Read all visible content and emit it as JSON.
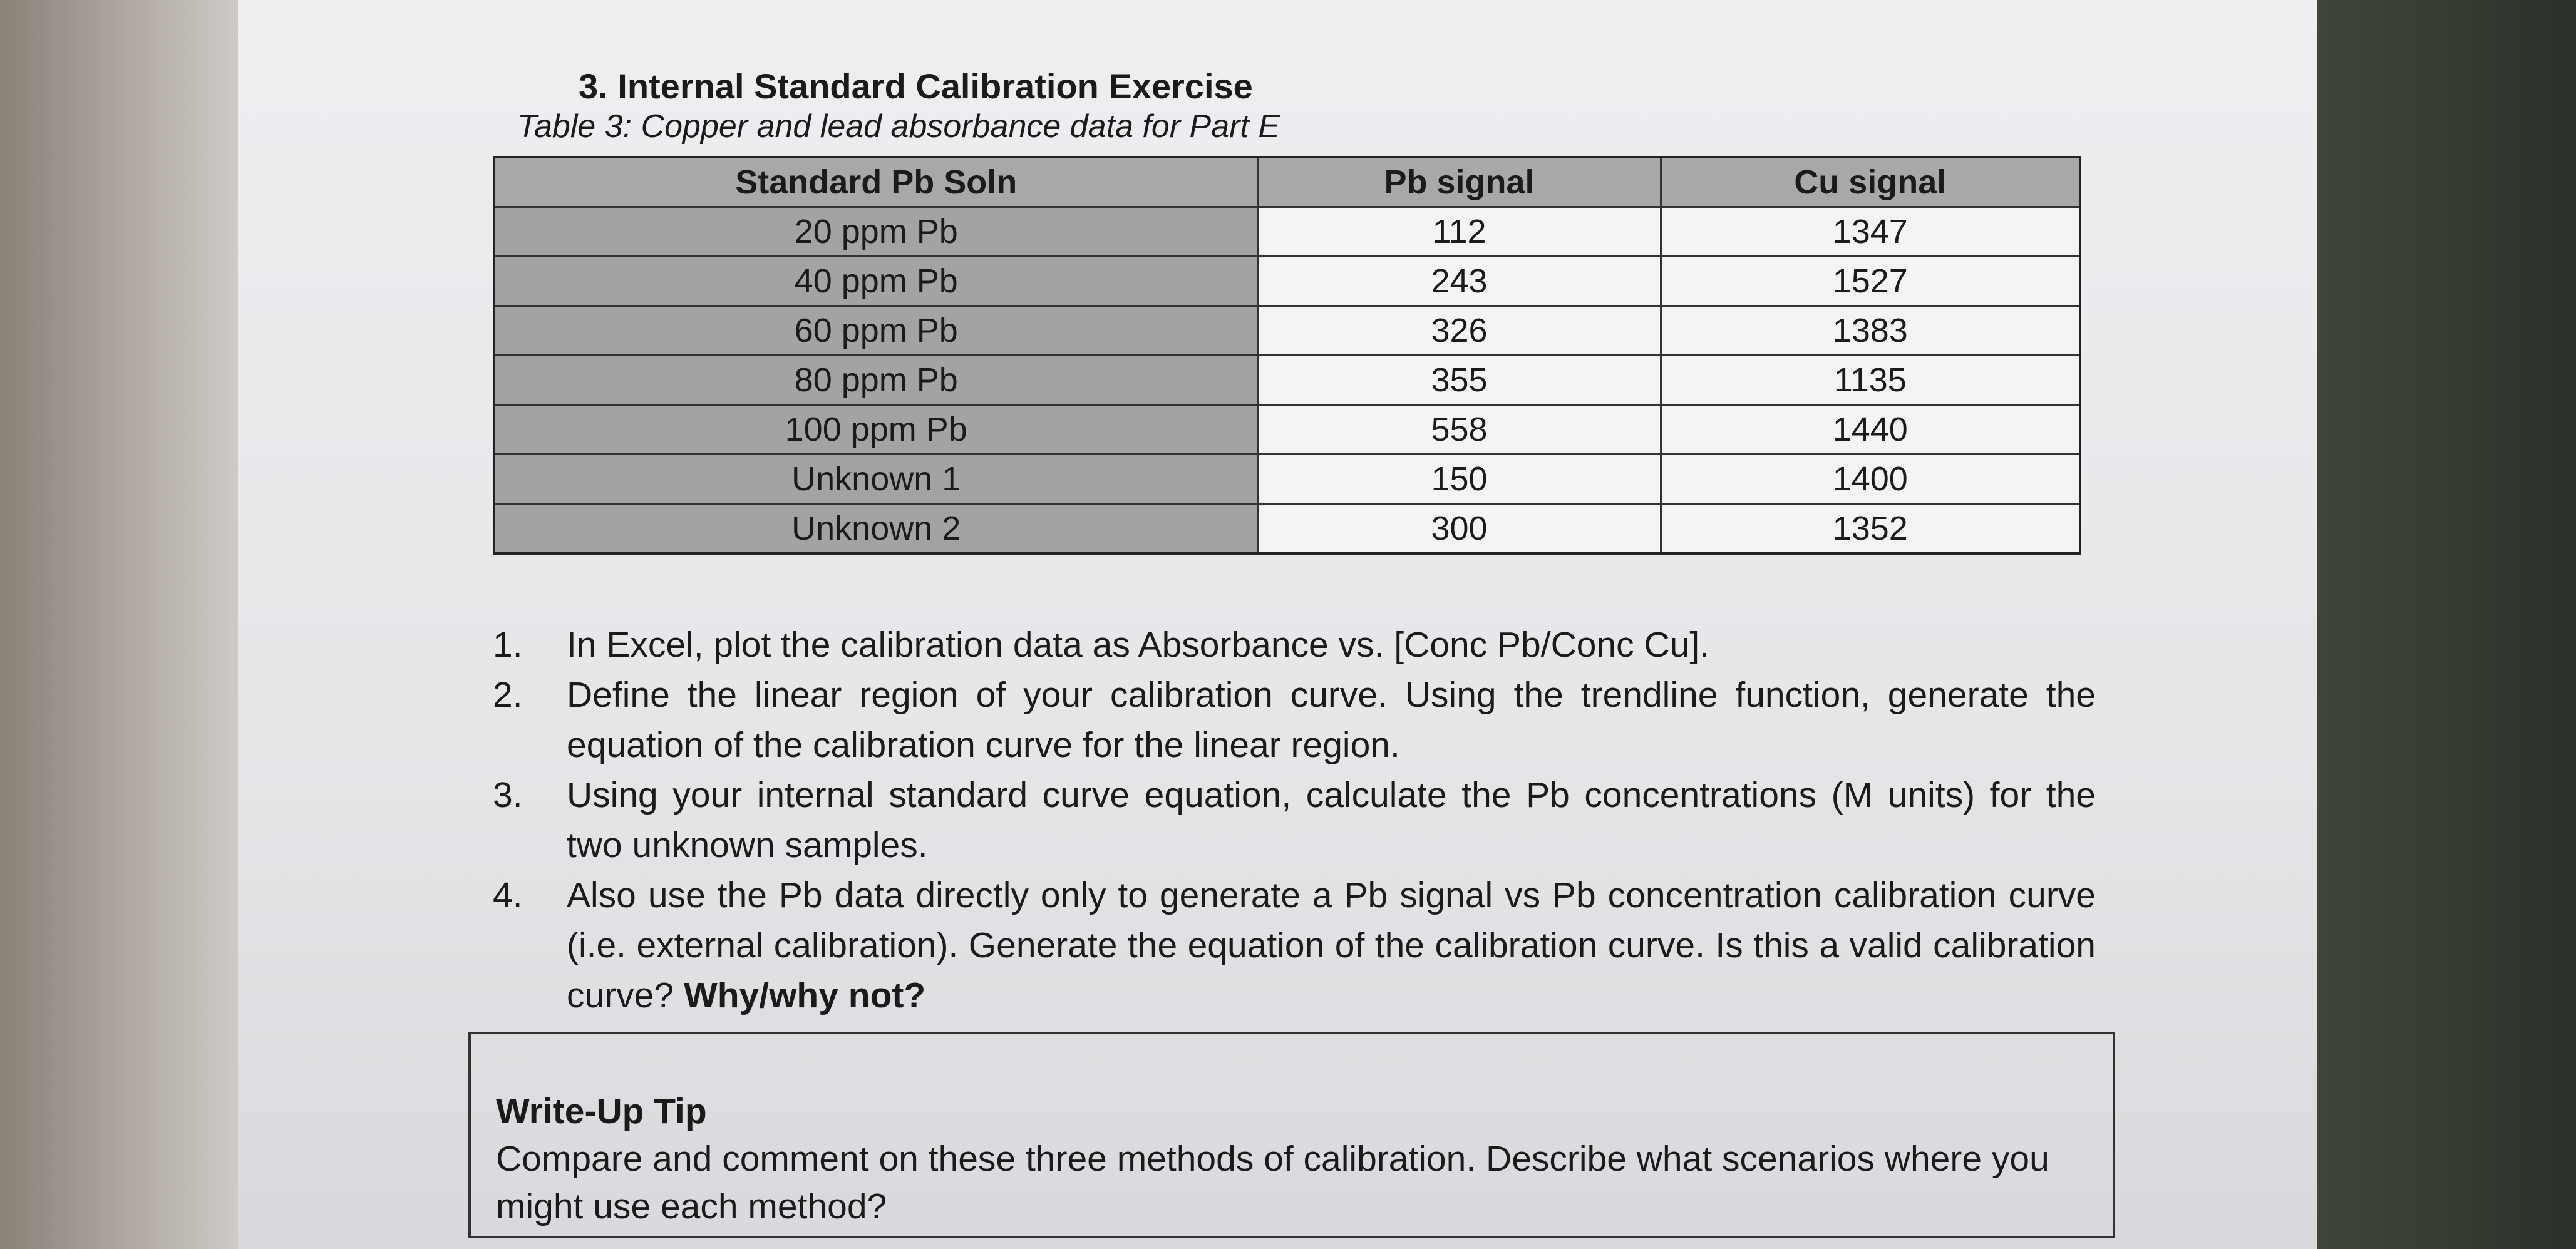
{
  "heading": "3. Internal Standard Calibration Exercise",
  "table": {
    "caption": "Table 3: Copper and lead absorbance data for Part E",
    "headers": [
      "Standard Pb Soln",
      "Pb signal",
      "Cu signal"
    ],
    "rows": [
      [
        "20 ppm Pb",
        "112",
        "1347"
      ],
      [
        "40 ppm Pb",
        "243",
        "1527"
      ],
      [
        "60 ppm Pb",
        "326",
        "1383"
      ],
      [
        "80 ppm Pb",
        "355",
        "1135"
      ],
      [
        "100 ppm Pb",
        "558",
        "1440"
      ],
      [
        "Unknown 1",
        "150",
        "1400"
      ],
      [
        "Unknown 2",
        "300",
        "1352"
      ]
    ]
  },
  "questions": [
    {
      "number": "1.",
      "text": "In Excel, plot the calibration data as Absorbance vs. [Conc Pb/Conc Cu]."
    },
    {
      "number": "2.",
      "text": "Define the linear region of your calibration curve. Using the trendline function, generate the equation of the calibration curve for the linear region."
    },
    {
      "number": "3.",
      "text": "Using your internal standard curve equation, calculate the Pb concentrations (M units) for the two unknown samples."
    },
    {
      "number": "4.",
      "text": "Also use the Pb data directly only to generate a Pb signal vs Pb concentration calibration curve (i.e. external calibration). Generate the equation of the calibration curve. Is this a valid calibration curve?",
      "emphasis": "Why/why not?"
    }
  ],
  "tip": {
    "title": "Write-Up Tip",
    "text": "Compare and comment on these three methods of calibration. Describe what scenarios where you might use each method?"
  }
}
